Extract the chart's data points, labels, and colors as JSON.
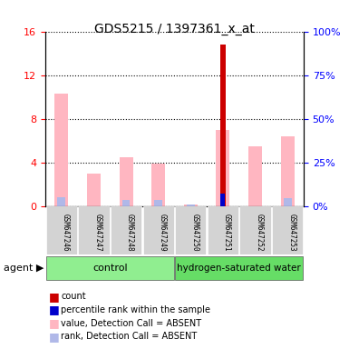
{
  "title": "GDS5215 / 1397361_x_at",
  "samples": [
    "GSM647246",
    "GSM647247",
    "GSM647248",
    "GSM647249",
    "GSM647250",
    "GSM647251",
    "GSM647252",
    "GSM647253"
  ],
  "groups": [
    "control",
    "control",
    "control",
    "control",
    "hydrogen-saturated water",
    "hydrogen-saturated water",
    "hydrogen-saturated water",
    "hydrogen-saturated water"
  ],
  "value_absent": [
    10.3,
    3.0,
    4.5,
    3.9,
    0.15,
    7.0,
    5.5,
    6.4
  ],
  "rank_absent": [
    5.0,
    null,
    3.5,
    3.3,
    0.9,
    null,
    null,
    4.2
  ],
  "count_present": [
    null,
    null,
    null,
    null,
    null,
    14.8,
    null,
    null
  ],
  "rank_present": [
    null,
    null,
    null,
    null,
    null,
    7.0,
    null,
    null
  ],
  "ylim_left": [
    0,
    16
  ],
  "ylim_right": [
    0,
    100
  ],
  "yticks_left": [
    0,
    4,
    8,
    12,
    16
  ],
  "yticks_right": [
    0,
    25,
    50,
    75,
    100
  ],
  "ytick_labels_left": [
    "0",
    "4",
    "8",
    "12",
    "16"
  ],
  "ytick_labels_right": [
    "0%",
    "25%",
    "50%",
    "75%",
    "100%"
  ],
  "group_colors": {
    "control": "#90EE90",
    "hydrogen-saturated water": "#00CC44"
  },
  "bar_width": 0.35,
  "color_count": "#CC0000",
  "color_rank_present": "#0000CC",
  "color_value_absent": "#FFB6C1",
  "color_rank_absent": "#B0B8E8",
  "agent_label": "agent",
  "legend_items": [
    {
      "label": "count",
      "color": "#CC0000"
    },
    {
      "label": "percentile rank within the sample",
      "color": "#0000CC"
    },
    {
      "label": "value, Detection Call = ABSENT",
      "color": "#FFB6C1"
    },
    {
      "label": "rank, Detection Call = ABSENT",
      "color": "#B0B8E8"
    }
  ]
}
